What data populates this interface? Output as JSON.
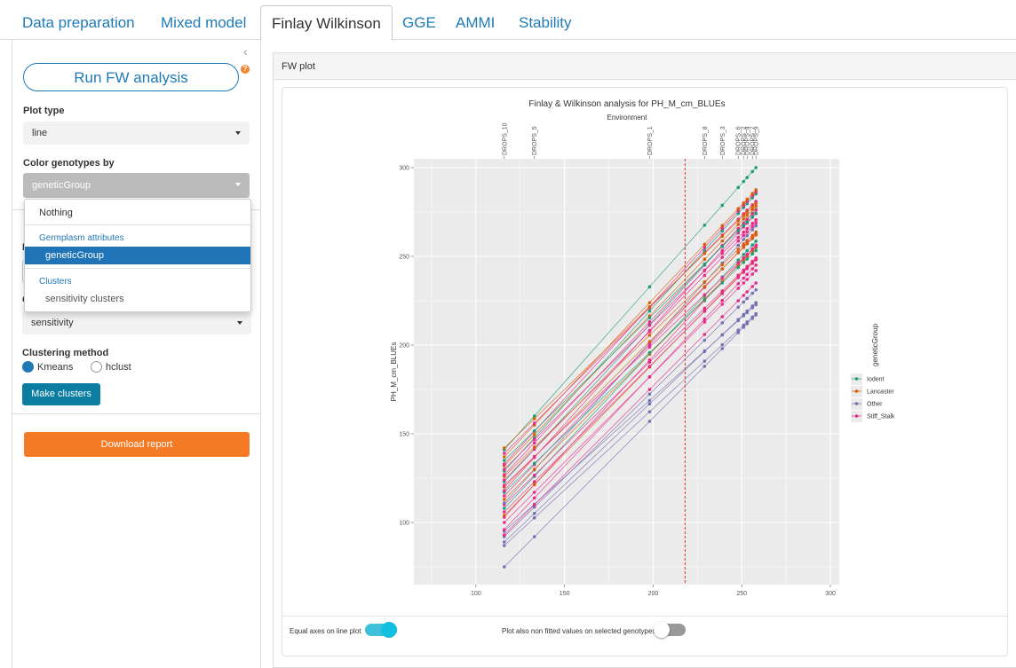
{
  "tabs": [
    "Data preparation",
    "Mixed model",
    "Finlay Wilkinson",
    "GGE",
    "AMMI",
    "Stability"
  ],
  "sidebar": {
    "collapse_icon": "‹",
    "run_button": "Run FW analysis",
    "help_icon": "?",
    "plot_type_label": "Plot type",
    "plot_type_value": "line",
    "color_label": "Color genotypes by",
    "color_value": "geneticGroup",
    "dropdown": {
      "nothing": "Nothing",
      "header1": "Germplasm attributes",
      "selected": "geneticGroup",
      "header2": "Clusters",
      "item": "sensitivity clusters"
    },
    "hidden_label1": "N",
    "hidden_label2": "C",
    "cluster_select_value": "sensitivity",
    "clustering_label": "Clustering method",
    "radio1": "Kmeans",
    "radio2": "hclust",
    "make_clusters": "Make clusters",
    "download": "Download report"
  },
  "panel": {
    "title": "FW plot",
    "toggle1_label": "Equal axes on line plot",
    "toggle1_on": true,
    "toggle2_label": "Plot also non fitted values on selected genotypes",
    "toggle2_on": false
  },
  "colors": {
    "accent": "#1f7ab6",
    "orange": "#f47a26",
    "teal": "#0b7da0"
  },
  "chart_data": {
    "type": "line",
    "title": "Finlay & Wilkinson analysis for PH_M_cm_BLUEs",
    "top_axis_title": "Environment",
    "ylabel": "PH_M_cm_BLUEs",
    "xlabel": "",
    "xlim": [
      65,
      305
    ],
    "ylim": [
      65,
      305
    ],
    "x_ticks": [
      100,
      150,
      200,
      250,
      300
    ],
    "y_ticks": [
      100,
      150,
      200,
      250,
      300
    ],
    "environments": [
      {
        "name": "DROPS_10",
        "x": 116
      },
      {
        "name": "DROPS_5",
        "x": 133
      },
      {
        "name": "DROPS_1",
        "x": 198
      },
      {
        "name": "DROPS_8",
        "x": 229
      },
      {
        "name": "DROPS_3",
        "x": 239
      },
      {
        "name": "DROPS_6",
        "x": 248
      },
      {
        "name": "DROPS_2",
        "x": 251
      },
      {
        "name": "DROPS_4",
        "x": 253
      },
      {
        "name": "DROPS_7",
        "x": 256
      },
      {
        "name": "DROPS_9",
        "x": 258
      }
    ],
    "vline_x": 218,
    "legend_title": "geneticGroup",
    "legend_position": "right",
    "series": [
      {
        "name": "Iodent",
        "color": "#1b9e77"
      },
      {
        "name": "Lancaster",
        "color": "#d95f02"
      },
      {
        "name": "Other",
        "color": "#7570b3"
      },
      {
        "name": "Stiff_Stalk",
        "color": "#e7298a"
      }
    ],
    "genotype_lines": [
      {
        "group": "Other",
        "start": 75,
        "slope": 1.0
      },
      {
        "group": "Other",
        "start": 87,
        "slope": 0.92
      },
      {
        "group": "Other",
        "start": 89,
        "slope": 0.95
      },
      {
        "group": "Other",
        "start": 92,
        "slope": 0.98
      },
      {
        "group": "Other",
        "start": 95,
        "slope": 0.9
      },
      {
        "group": "Stiff_Stalk",
        "start": 93,
        "slope": 1.0
      },
      {
        "group": "Stiff_Stalk",
        "start": 96,
        "slope": 1.05
      },
      {
        "group": "Stiff_Stalk",
        "start": 100,
        "slope": 1.0
      },
      {
        "group": "Stiff_Stalk",
        "start": 103,
        "slope": 1.08
      },
      {
        "group": "Lancaster",
        "start": 104,
        "slope": 1.02
      },
      {
        "group": "Stiff_Stalk",
        "start": 106,
        "slope": 1.0
      },
      {
        "group": "Iodent",
        "start": 108,
        "slope": 1.06
      },
      {
        "group": "Stiff_Stalk",
        "start": 110,
        "slope": 0.98
      },
      {
        "group": "Other",
        "start": 111,
        "slope": 1.1
      },
      {
        "group": "Lancaster",
        "start": 113,
        "slope": 1.0
      },
      {
        "group": "Stiff_Stalk",
        "start": 115,
        "slope": 1.04
      },
      {
        "group": "Iodent",
        "start": 117,
        "slope": 0.96
      },
      {
        "group": "Stiff_Stalk",
        "start": 118,
        "slope": 1.1
      },
      {
        "group": "Lancaster",
        "start": 120,
        "slope": 1.0
      },
      {
        "group": "Stiff_Stalk",
        "start": 121,
        "slope": 0.95
      },
      {
        "group": "Iodent",
        "start": 123,
        "slope": 1.08
      },
      {
        "group": "Stiff_Stalk",
        "start": 124,
        "slope": 1.02
      },
      {
        "group": "Lancaster",
        "start": 126,
        "slope": 0.97
      },
      {
        "group": "Stiff_Stalk",
        "start": 127,
        "slope": 1.05
      },
      {
        "group": "Iodent",
        "start": 129,
        "slope": 1.1
      },
      {
        "group": "Stiff_Stalk",
        "start": 130,
        "slope": 0.99
      },
      {
        "group": "Lancaster",
        "start": 132,
        "slope": 1.03
      },
      {
        "group": "Stiff_Stalk",
        "start": 133,
        "slope": 1.08
      },
      {
        "group": "Iodent",
        "start": 135,
        "slope": 0.98
      },
      {
        "group": "Lancaster",
        "start": 137,
        "slope": 1.06
      },
      {
        "group": "Stiff_Stalk",
        "start": 139,
        "slope": 1.0
      },
      {
        "group": "Iodent",
        "start": 141,
        "slope": 1.12
      },
      {
        "group": "Lancaster",
        "start": 142,
        "slope": 0.97
      }
    ]
  }
}
